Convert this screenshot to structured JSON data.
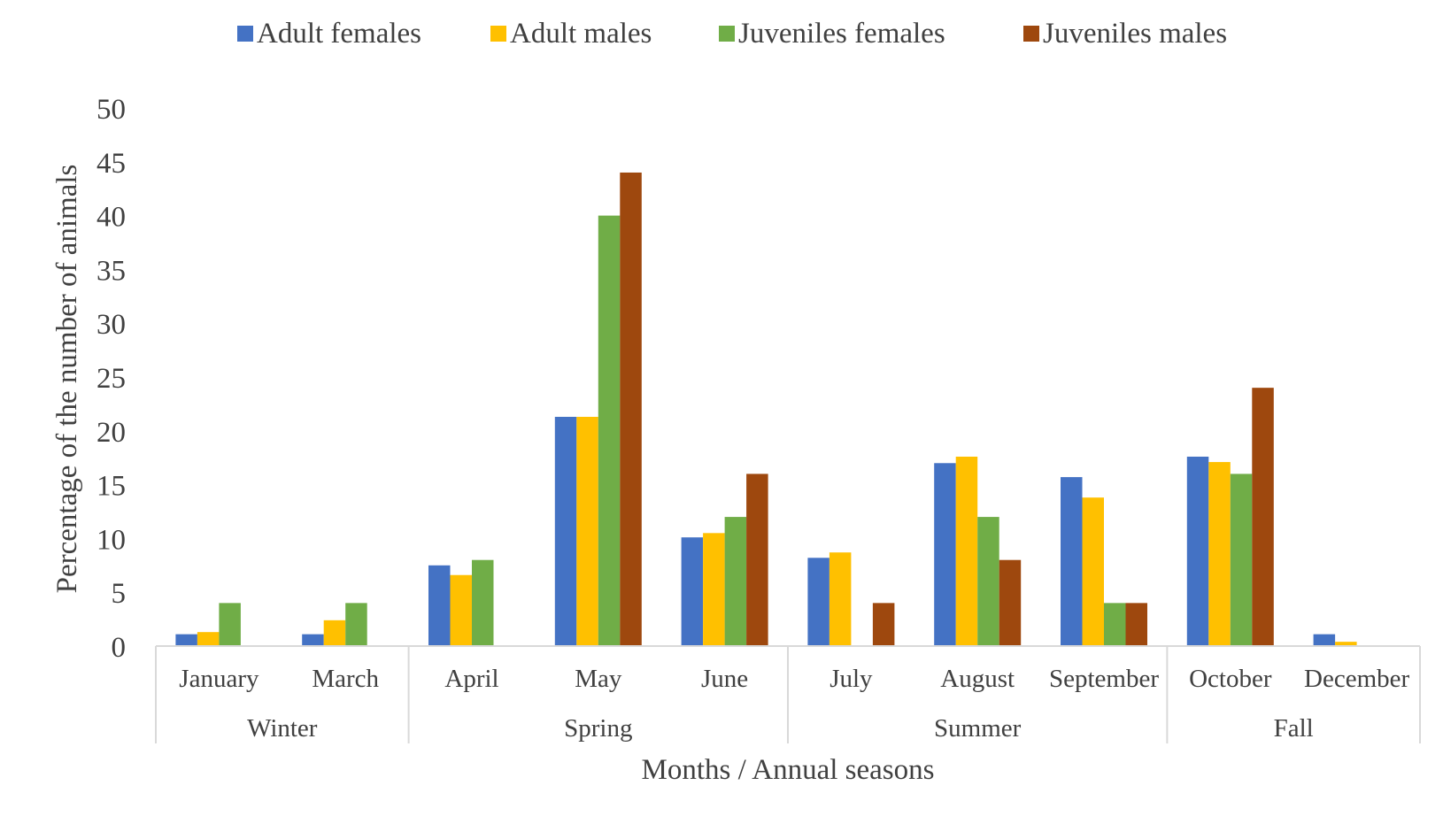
{
  "chart_data": {
    "type": "bar",
    "xlabel": "Months / Annual seasons",
    "ylabel": "Percentage of the number of animals",
    "ylim": [
      0,
      50
    ],
    "yticks": [
      "0",
      "5",
      "10",
      "15",
      "20",
      "25",
      "30",
      "35",
      "40",
      "45",
      "50"
    ],
    "grid": false,
    "legend_position": "top",
    "categories": [
      "January",
      "March",
      "April",
      "May",
      "June",
      "July",
      "August",
      "September",
      "October",
      "December"
    ],
    "groups": [
      {
        "label": "Winter",
        "start": 0,
        "end": 1
      },
      {
        "label": "Spring",
        "start": 2,
        "end": 4
      },
      {
        "label": "Summer",
        "start": 5,
        "end": 7
      },
      {
        "label": "Fall",
        "start": 8,
        "end": 9
      }
    ],
    "series": [
      {
        "name": "Adult females",
        "color": "#4472c4",
        "values": [
          1.1,
          1.1,
          7.5,
          21.3,
          10.1,
          8.2,
          17.0,
          15.7,
          17.6,
          1.1
        ]
      },
      {
        "name": "Adult males",
        "color": "#ffc000",
        "values": [
          1.3,
          2.4,
          6.6,
          21.3,
          10.5,
          8.7,
          17.6,
          13.8,
          17.1,
          0.4
        ]
      },
      {
        "name": "Juveniles females",
        "color": "#70ad47",
        "values": [
          4,
          4,
          8,
          40,
          12,
          0,
          12,
          4,
          16,
          0
        ]
      },
      {
        "name": "Juveniles males",
        "color": "#9e480e",
        "values": [
          0,
          0,
          0,
          44,
          16,
          4,
          8,
          4,
          24,
          0
        ]
      }
    ]
  }
}
